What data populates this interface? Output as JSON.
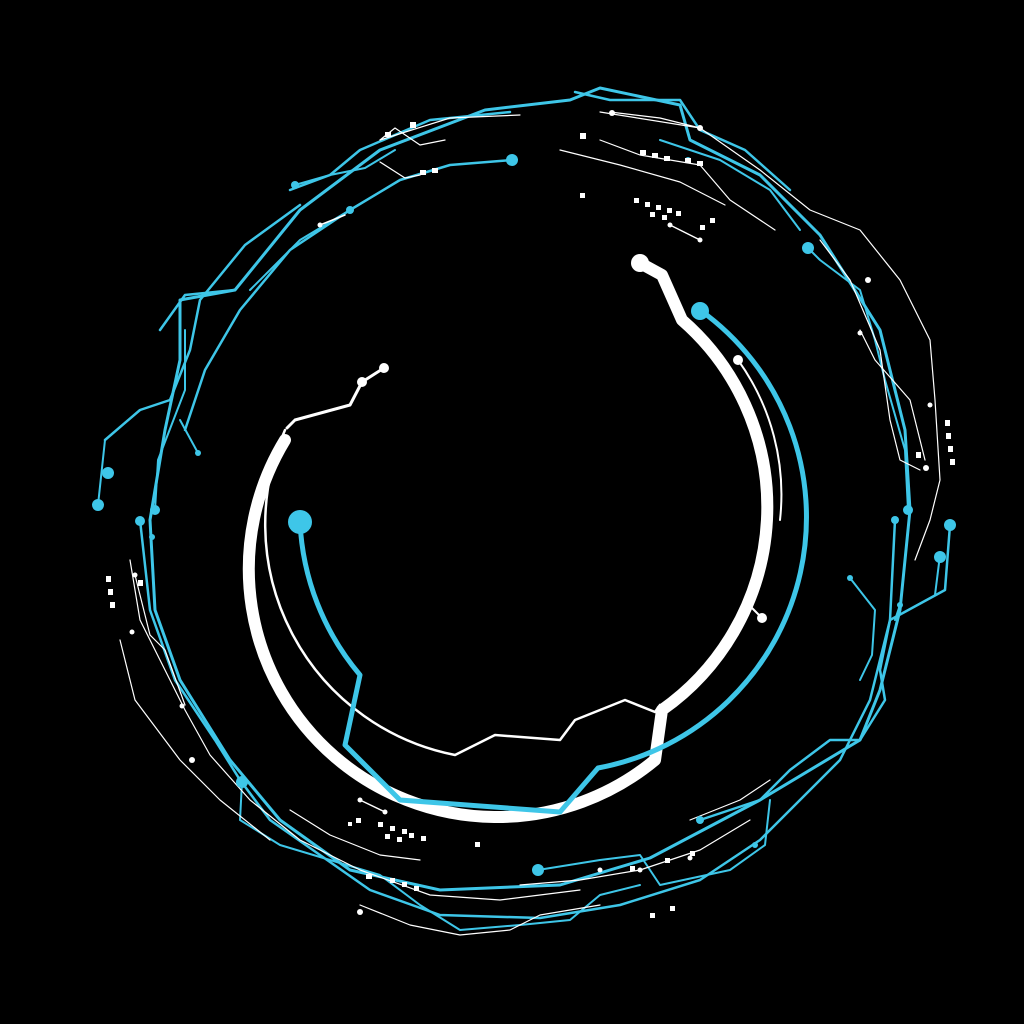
{
  "colors": {
    "background": "#000000",
    "accent": "#3ec6e8",
    "foreground": "#ffffff"
  },
  "graphic": {
    "icon": "circuit-ring-hud-icon"
  }
}
